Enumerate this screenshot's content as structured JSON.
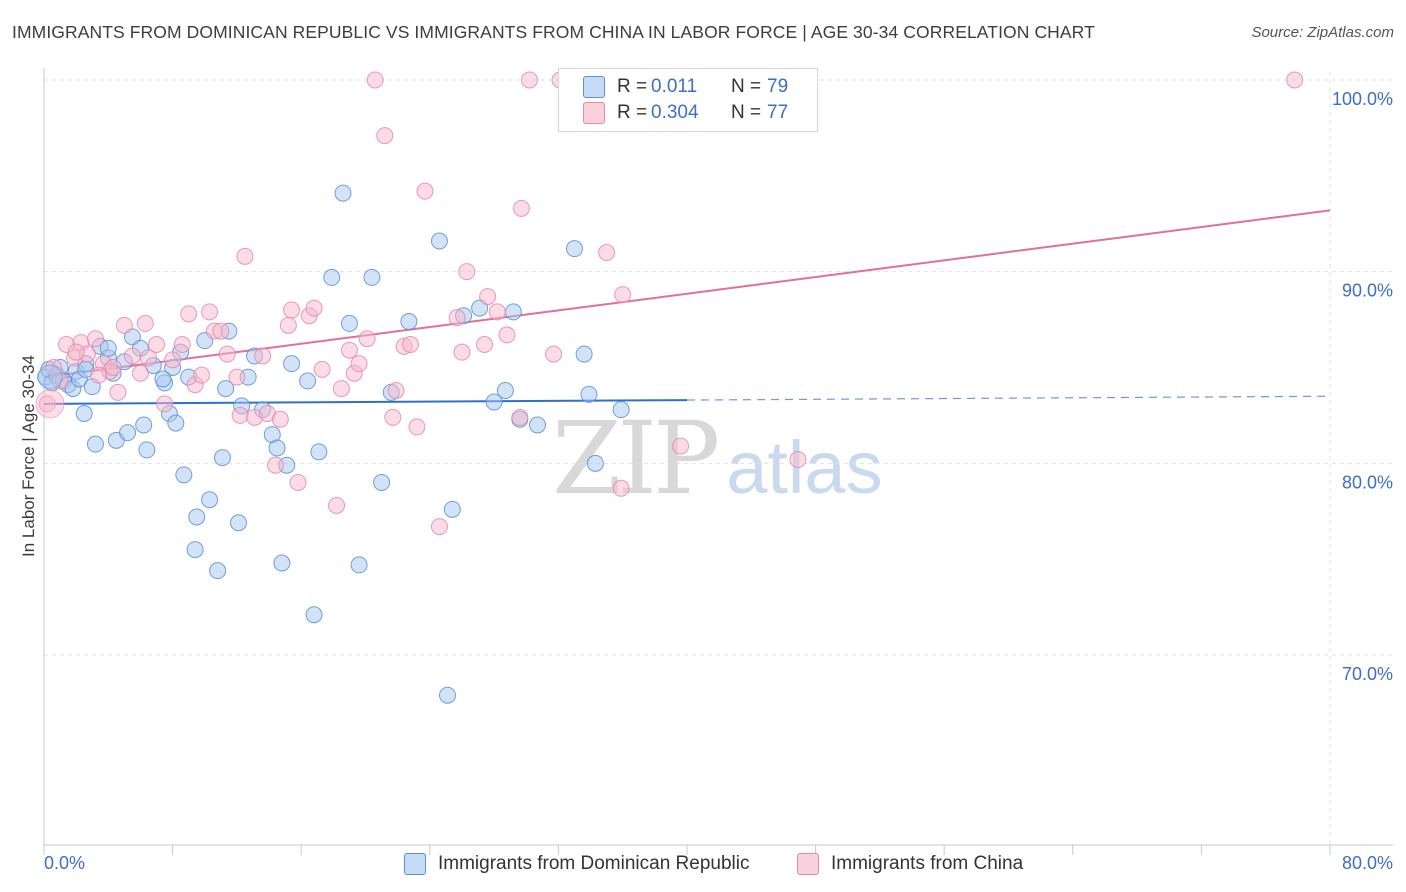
{
  "header": {
    "title": "IMMIGRANTS FROM DOMINICAN REPUBLIC VS IMMIGRANTS FROM CHINA IN LABOR FORCE | AGE 30-34 CORRELATION CHART",
    "source": "Source: ZipAtlas.com"
  },
  "watermark": {
    "zip": "ZIP",
    "atlas": "atlas"
  },
  "legend": {
    "rows": [
      {
        "r_label": "R =",
        "r_value": "0.011",
        "n_label": "N =",
        "n_value": "79",
        "color": "#a8c8f0"
      },
      {
        "r_label": "R =",
        "r_value": "0.304",
        "n_label": "N =",
        "n_value": "77",
        "color": "#f7b8cc"
      }
    ]
  },
  "bottom_legend": {
    "series1": "Immigrants from Dominican Republic",
    "series2": "Immigrants from China"
  },
  "chart_data": {
    "type": "scatter",
    "title": "IMMIGRANTS FROM DOMINICAN REPUBLIC VS IMMIGRANTS FROM CHINA IN LABOR FORCE | AGE 30-34 CORRELATION CHART",
    "xlabel": "",
    "ylabel": "In Labor Force | Age 30-34",
    "xlim": [
      0,
      80
    ],
    "ylim": [
      60,
      102
    ],
    "x_tick_labels": [
      "0.0%",
      "80.0%"
    ],
    "y_ticks": [
      70,
      80,
      90,
      100
    ],
    "y_tick_labels": [
      "70.0%",
      "80.0%",
      "90.0%",
      "100.0%"
    ],
    "grid": true,
    "legend_position": "top-center",
    "colors": {
      "dominican_fill": "#a8c8f0",
      "dominican_stroke": "#5b8fd6",
      "dominican_line": "#2f6fcf",
      "china_fill": "#f7b8cc",
      "china_stroke": "#e58aa8",
      "china_line": "#e0709a"
    },
    "series": [
      {
        "name": "Immigrants from Dominican Republic",
        "trend": {
          "x": [
            0,
            40,
            80
          ],
          "y": [
            83.1,
            83.3,
            83.5
          ],
          "solid_until": 40
        },
        "points": [
          [
            0.1,
            84.5
          ],
          [
            0.3,
            84.9
          ],
          [
            0.5,
            84.2
          ],
          [
            0.8,
            84.6
          ],
          [
            1.0,
            85.0
          ],
          [
            1.2,
            84.3
          ],
          [
            1.5,
            84.1
          ],
          [
            1.8,
            83.9
          ],
          [
            2.0,
            84.8
          ],
          [
            2.2,
            84.4
          ],
          [
            2.6,
            85.2
          ],
          [
            3.0,
            84.0
          ],
          [
            3.5,
            86.1
          ],
          [
            4.0,
            85.5
          ],
          [
            4.3,
            84.7
          ],
          [
            5.0,
            85.3
          ],
          [
            5.5,
            86.6
          ],
          [
            6.0,
            86.0
          ],
          [
            6.8,
            85.1
          ],
          [
            7.5,
            84.2
          ],
          [
            8.0,
            85.0
          ],
          [
            8.5,
            85.8
          ],
          [
            9.0,
            84.5
          ],
          [
            10.0,
            86.4
          ],
          [
            2.5,
            82.6
          ],
          [
            3.2,
            81.0
          ],
          [
            4.5,
            81.2
          ],
          [
            5.2,
            81.6
          ],
          [
            6.2,
            82.0
          ],
          [
            6.4,
            80.7
          ],
          [
            7.8,
            82.6
          ],
          [
            8.2,
            82.1
          ],
          [
            8.7,
            79.4
          ],
          [
            9.5,
            77.2
          ],
          [
            10.3,
            78.1
          ],
          [
            10.8,
            74.4
          ],
          [
            9.4,
            75.5
          ],
          [
            11.1,
            80.3
          ],
          [
            12.1,
            76.9
          ],
          [
            11.3,
            83.9
          ],
          [
            12.3,
            83.0
          ],
          [
            12.7,
            84.5
          ],
          [
            13.1,
            85.6
          ],
          [
            13.6,
            82.8
          ],
          [
            14.2,
            81.5
          ],
          [
            14.5,
            80.8
          ],
          [
            15.1,
            79.9
          ],
          [
            14.8,
            74.8
          ],
          [
            15.4,
            85.2
          ],
          [
            16.4,
            84.3
          ],
          [
            17.1,
            80.6
          ],
          [
            16.8,
            72.1
          ],
          [
            17.9,
            89.7
          ],
          [
            18.6,
            94.1
          ],
          [
            19.0,
            87.3
          ],
          [
            19.6,
            74.7
          ],
          [
            20.4,
            89.7
          ],
          [
            21.0,
            79.0
          ],
          [
            21.6,
            83.7
          ],
          [
            22.7,
            87.4
          ],
          [
            24.6,
            91.6
          ],
          [
            25.1,
            67.9
          ],
          [
            25.4,
            77.6
          ],
          [
            26.1,
            87.7
          ],
          [
            27.1,
            88.1
          ],
          [
            28.0,
            83.2
          ],
          [
            28.7,
            83.8
          ],
          [
            29.2,
            87.9
          ],
          [
            29.6,
            82.3
          ],
          [
            30.7,
            82.0
          ],
          [
            33.0,
            91.2
          ],
          [
            34.3,
            80.0
          ],
          [
            33.6,
            85.7
          ],
          [
            33.9,
            83.6
          ],
          [
            35.9,
            82.8
          ],
          [
            4.0,
            86.0
          ],
          [
            2.6,
            84.9
          ],
          [
            11.5,
            86.9
          ],
          [
            7.4,
            84.4
          ]
        ]
      },
      {
        "name": "Immigrants from China",
        "trend": {
          "x": [
            0,
            80
          ],
          "y": [
            84.5,
            93.2
          ]
        },
        "points": [
          [
            0.2,
            83.1
          ],
          [
            0.6,
            85.0
          ],
          [
            1.0,
            84.3
          ],
          [
            1.4,
            86.2
          ],
          [
            1.9,
            85.5
          ],
          [
            2.3,
            86.3
          ],
          [
            2.7,
            85.7
          ],
          [
            3.2,
            86.5
          ],
          [
            3.7,
            85.2
          ],
          [
            4.1,
            84.8
          ],
          [
            4.6,
            83.7
          ],
          [
            5.0,
            87.2
          ],
          [
            5.5,
            85.6
          ],
          [
            6.0,
            84.7
          ],
          [
            6.5,
            85.5
          ],
          [
            7.0,
            86.2
          ],
          [
            7.5,
            83.1
          ],
          [
            8.0,
            85.4
          ],
          [
            8.6,
            86.2
          ],
          [
            9.0,
            87.8
          ],
          [
            9.4,
            84.1
          ],
          [
            9.8,
            84.6
          ],
          [
            10.3,
            87.9
          ],
          [
            10.6,
            86.9
          ],
          [
            11.0,
            86.9
          ],
          [
            11.4,
            85.7
          ],
          [
            12.0,
            84.5
          ],
          [
            12.2,
            82.5
          ],
          [
            12.5,
            90.8
          ],
          [
            13.1,
            82.4
          ],
          [
            13.6,
            85.6
          ],
          [
            13.9,
            82.6
          ],
          [
            14.4,
            79.9
          ],
          [
            14.7,
            82.3
          ],
          [
            15.2,
            87.2
          ],
          [
            15.4,
            88.0
          ],
          [
            15.8,
            79.0
          ],
          [
            16.5,
            87.7
          ],
          [
            16.8,
            88.1
          ],
          [
            17.3,
            84.9
          ],
          [
            18.2,
            77.8
          ],
          [
            18.5,
            83.9
          ],
          [
            19.0,
            85.9
          ],
          [
            19.3,
            84.7
          ],
          [
            19.6,
            85.2
          ],
          [
            20.1,
            86.5
          ],
          [
            20.6,
            100.0
          ],
          [
            21.2,
            97.1
          ],
          [
            21.7,
            82.4
          ],
          [
            21.9,
            83.8
          ],
          [
            22.4,
            86.1
          ],
          [
            22.8,
            86.2
          ],
          [
            23.2,
            81.9
          ],
          [
            23.7,
            94.2
          ],
          [
            24.6,
            76.7
          ],
          [
            25.7,
            87.6
          ],
          [
            26.0,
            85.8
          ],
          [
            26.3,
            90.0
          ],
          [
            27.4,
            86.2
          ],
          [
            27.6,
            88.7
          ],
          [
            28.2,
            87.9
          ],
          [
            28.8,
            86.7
          ],
          [
            29.6,
            82.4
          ],
          [
            29.7,
            93.3
          ],
          [
            30.2,
            100.0
          ],
          [
            31.7,
            85.7
          ],
          [
            32.1,
            100.0
          ],
          [
            35.0,
            91.0
          ],
          [
            36.0,
            88.8
          ],
          [
            35.9,
            78.7
          ],
          [
            39.6,
            80.9
          ],
          [
            46.9,
            80.2
          ],
          [
            77.8,
            100.0
          ],
          [
            2.0,
            85.8
          ],
          [
            4.3,
            85.0
          ],
          [
            6.3,
            87.3
          ],
          [
            3.4,
            84.6
          ]
        ]
      }
    ]
  }
}
